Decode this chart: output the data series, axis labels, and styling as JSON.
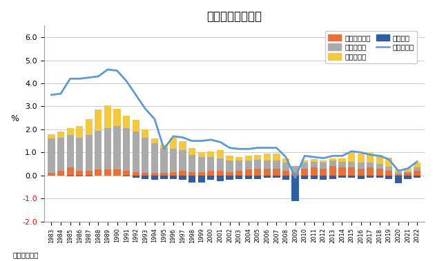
{
  "title": "日本の潜在成長率",
  "ylabel": "%",
  "source": "（出所）日銀",
  "years": [
    1983,
    1984,
    1985,
    1986,
    1987,
    1988,
    1989,
    1990,
    1991,
    1992,
    1993,
    1994,
    1995,
    1996,
    1997,
    1998,
    1999,
    2000,
    2001,
    2002,
    2003,
    2004,
    2005,
    2006,
    2007,
    2008,
    2009,
    2010,
    2011,
    2012,
    2013,
    2014,
    2015,
    2016,
    2017,
    2018,
    2019,
    2020,
    2021,
    2022
  ],
  "tfp": [
    0.1,
    0.2,
    0.35,
    0.2,
    0.2,
    0.25,
    0.25,
    0.25,
    0.2,
    0.15,
    0.1,
    0.1,
    0.1,
    0.15,
    0.2,
    0.15,
    0.15,
    0.2,
    0.2,
    0.15,
    0.2,
    0.25,
    0.3,
    0.3,
    0.3,
    0.2,
    0.1,
    0.3,
    0.35,
    0.3,
    0.4,
    0.35,
    0.35,
    0.3,
    0.35,
    0.3,
    0.2,
    0.05,
    0.1,
    0.2
  ],
  "capital": [
    1.5,
    1.45,
    1.4,
    1.45,
    1.55,
    1.7,
    1.8,
    1.9,
    1.85,
    1.75,
    1.55,
    1.3,
    1.1,
    1.0,
    0.9,
    0.75,
    0.65,
    0.6,
    0.55,
    0.5,
    0.45,
    0.4,
    0.38,
    0.35,
    0.35,
    0.35,
    0.3,
    0.25,
    0.25,
    0.25,
    0.25,
    0.25,
    0.25,
    0.25,
    0.22,
    0.2,
    0.18,
    0.1,
    0.08,
    0.15
  ],
  "labor_pop": [
    0.2,
    0.25,
    0.3,
    0.5,
    0.7,
    0.9,
    1.0,
    0.75,
    0.55,
    0.5,
    0.35,
    0.2,
    0.15,
    0.5,
    0.4,
    0.3,
    0.2,
    0.25,
    0.35,
    0.2,
    0.15,
    0.2,
    0.2,
    0.3,
    0.3,
    0.2,
    0.0,
    0.1,
    0.1,
    0.1,
    0.1,
    0.15,
    0.4,
    0.4,
    0.4,
    0.4,
    0.4,
    0.1,
    0.15,
    0.2
  ],
  "labor_hours": [
    0.0,
    0.0,
    -0.05,
    -0.05,
    -0.05,
    0.0,
    0.0,
    0.0,
    -0.05,
    -0.1,
    -0.15,
    -0.2,
    -0.15,
    -0.15,
    -0.2,
    -0.3,
    -0.3,
    -0.2,
    -0.25,
    -0.2,
    -0.15,
    -0.15,
    -0.15,
    -0.1,
    -0.1,
    -0.2,
    -1.1,
    -0.15,
    -0.15,
    -0.2,
    -0.15,
    -0.1,
    -0.1,
    -0.15,
    -0.1,
    -0.1,
    -0.15,
    -0.35,
    -0.15,
    -0.1
  ],
  "potential_growth": [
    3.5,
    3.55,
    4.2,
    4.2,
    4.25,
    4.3,
    4.6,
    4.55,
    4.1,
    3.5,
    2.9,
    2.45,
    1.15,
    1.7,
    1.65,
    1.5,
    1.5,
    1.55,
    1.45,
    1.2,
    1.15,
    1.15,
    1.2,
    1.2,
    1.2,
    0.8,
    -0.1,
    0.85,
    0.8,
    0.75,
    0.85,
    0.85,
    1.05,
    1.0,
    0.9,
    0.85,
    0.7,
    0.2,
    0.3,
    0.6
  ],
  "tfp_color": "#E8703A",
  "capital_color": "#AAAAAA",
  "labor_pop_color": "#F5C842",
  "labor_hours_color": "#2E5FA3",
  "line_color": "#5B9BD5",
  "background_color": "#FFFFFF",
  "ylim": [
    -2.0,
    6.5
  ],
  "yticks": [
    -2.0,
    -1.0,
    0.0,
    1.0,
    2.0,
    3.0,
    4.0,
    5.0,
    6.0
  ],
  "legend_labels": [
    "全要素生産性",
    "資本投入量",
    "労働力人口",
    "労働時間",
    "潜在成長率"
  ]
}
